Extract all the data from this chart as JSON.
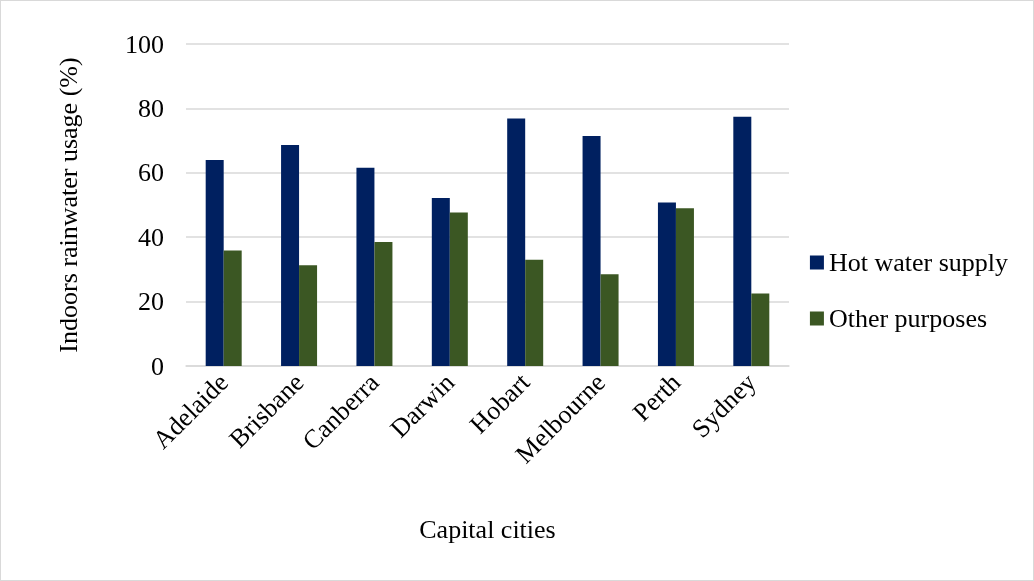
{
  "chart_data": {
    "type": "bar",
    "xlabel": "Capital cities",
    "ylabel": "Indoors rainwater usage (%)",
    "categories": [
      "Adelaide",
      "Brisbane",
      "Canberra",
      "Darwin",
      "Hobart",
      "Melbourne",
      "Perth",
      "Sydney"
    ],
    "series": [
      {
        "name": "Hot water supply",
        "color": "#002060",
        "values": [
          64.0,
          68.6,
          61.6,
          52.2,
          76.9,
          71.4,
          50.8,
          77.4
        ]
      },
      {
        "name": "Other purposes",
        "color": "#3b5723",
        "values": [
          35.9,
          31.3,
          38.5,
          47.7,
          33.0,
          28.5,
          49.0,
          22.5
        ]
      }
    ],
    "ylim": [
      0,
      100
    ],
    "yticks": [
      0,
      20,
      40,
      60,
      80,
      100
    ],
    "grid": "y",
    "legend": "right"
  }
}
